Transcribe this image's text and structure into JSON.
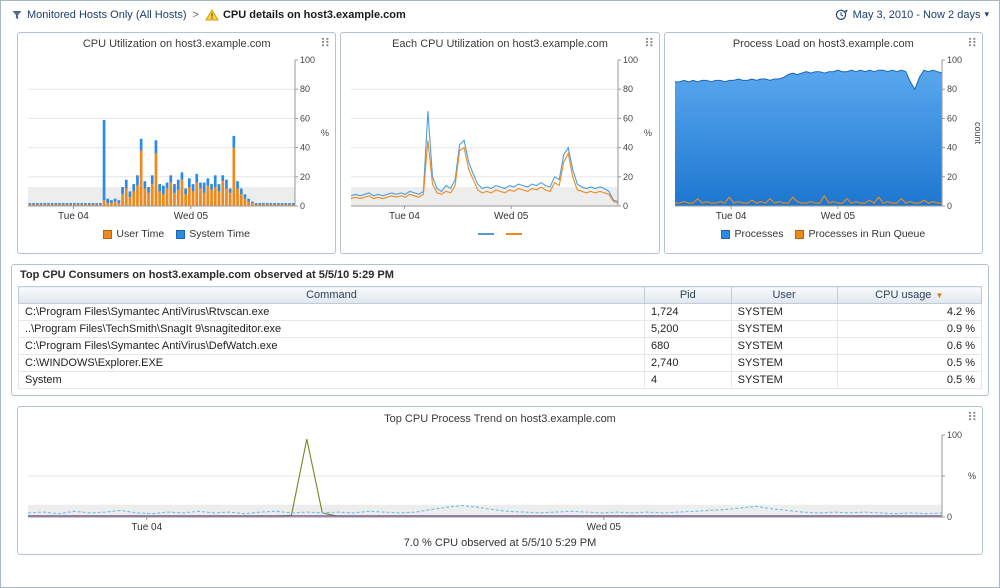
{
  "header": {
    "breadcrumb_root": "Monitored Hosts Only (All Hosts)",
    "breadcrumb_sep": ">",
    "page_title": "CPU details on host3.example.com",
    "time_range": "May 3, 2010 - Now 2 days"
  },
  "consumers": {
    "title": "Top CPU Consumers on host3.example.com observed at 5/5/10 5:29 PM",
    "columns": [
      "Command",
      "Pid",
      "User",
      "CPU usage"
    ],
    "rows": [
      {
        "command": "C:\\Program Files\\Symantec AntiVirus\\Rtvscan.exe",
        "pid": "1,724",
        "user": "SYSTEM",
        "cpu": "4.2 %"
      },
      {
        "command": "..\\Program Files\\TechSmith\\SnagIt 9\\snagiteditor.exe",
        "pid": "5,200",
        "user": "SYSTEM",
        "cpu": "0.9 %"
      },
      {
        "command": "C:\\Program Files\\Symantec AntiVirus\\DefWatch.exe",
        "pid": "680",
        "user": "SYSTEM",
        "cpu": "0.6 %"
      },
      {
        "command": "C:\\WINDOWS\\Explorer.EXE",
        "pid": "2,740",
        "user": "SYSTEM",
        "cpu": "0.5 %"
      },
      {
        "command": "System",
        "pid": "4",
        "user": "SYSTEM",
        "cpu": "0.5 %"
      }
    ]
  },
  "trend_caption": "7.0 % CPU observed at 5/5/10 5:29 PM",
  "chart_data": [
    {
      "id": "cpu_util",
      "type": "stacked-bar",
      "title": "CPU Utilization on host3.example.com",
      "ylim": [
        0,
        100
      ],
      "yticks": [
        0,
        20,
        40,
        60,
        80,
        100
      ],
      "ylabel": "%",
      "band": 13,
      "xticks": [
        {
          "pos": 0.17,
          "label": "Tue 04"
        },
        {
          "pos": 0.61,
          "label": "Wed 05"
        }
      ],
      "series": [
        {
          "name": "User Time",
          "color": "#ee8a1c",
          "values": [
            1,
            1,
            1,
            1,
            1,
            1,
            1,
            1,
            1,
            1,
            1,
            1,
            1,
            1,
            1,
            1,
            1,
            1,
            1,
            1,
            4,
            2,
            2,
            3,
            2,
            8,
            12,
            6,
            10,
            14,
            38,
            12,
            9,
            15,
            36,
            10,
            8,
            12,
            16,
            9,
            11,
            18,
            8,
            13,
            10,
            16,
            12,
            9,
            14,
            11,
            13,
            10,
            17,
            12,
            9,
            40,
            12,
            8,
            5,
            3,
            2,
            1,
            1,
            1,
            1,
            1,
            1,
            1,
            1,
            1,
            1,
            1
          ]
        },
        {
          "name": "System Time",
          "color": "#2b8be6",
          "values": [
            1,
            1,
            1,
            1,
            1,
            1,
            1,
            1,
            1,
            1,
            1,
            1,
            1,
            1,
            1,
            1,
            1,
            1,
            1,
            1,
            55,
            3,
            2,
            2,
            2,
            5,
            6,
            4,
            5,
            7,
            8,
            5,
            4,
            6,
            9,
            5,
            6,
            4,
            5,
            6,
            7,
            5,
            4,
            6,
            5,
            6,
            4,
            7,
            5,
            4,
            8,
            5,
            4,
            6,
            3,
            8,
            5,
            4,
            3,
            2,
            1,
            1,
            1,
            1,
            1,
            1,
            1,
            1,
            1,
            1,
            1,
            1
          ]
        }
      ],
      "legend": [
        {
          "label": "User Time",
          "color": "#ee8a1c",
          "shape": "square"
        },
        {
          "label": "System Time",
          "color": "#2b8be6",
          "shape": "square"
        }
      ]
    },
    {
      "id": "each_cpu",
      "type": "line",
      "title": "Each CPU Utilization on host3.example.com",
      "ylim": [
        0,
        100
      ],
      "yticks": [
        0,
        20,
        40,
        60,
        80,
        100
      ],
      "ylabel": "%",
      "band": 13,
      "xticks": [
        {
          "pos": 0.2,
          "label": "Tue 04"
        },
        {
          "pos": 0.6,
          "label": "Wed 05"
        }
      ],
      "series": [
        {
          "color": "#4f9ddb",
          "values": [
            7,
            8,
            7,
            8,
            9,
            7,
            8,
            7,
            8,
            9,
            8,
            9,
            8,
            10,
            9,
            8,
            10,
            65,
            20,
            12,
            10,
            14,
            12,
            18,
            42,
            45,
            30,
            22,
            15,
            12,
            13,
            12,
            14,
            13,
            12,
            14,
            13,
            15,
            14,
            13,
            15,
            14,
            16,
            14,
            13,
            20,
            18,
            35,
            40,
            25,
            15,
            13,
            12,
            13,
            12,
            13,
            12,
            10,
            4,
            3
          ]
        },
        {
          "color": "#ee8a1c",
          "values": [
            5,
            6,
            5,
            6,
            7,
            5,
            6,
            5,
            6,
            7,
            6,
            7,
            6,
            8,
            7,
            6,
            8,
            45,
            15,
            9,
            8,
            10,
            9,
            14,
            38,
            40,
            25,
            18,
            11,
            9,
            10,
            9,
            11,
            10,
            9,
            11,
            10,
            12,
            11,
            10,
            12,
            11,
            13,
            11,
            10,
            16,
            14,
            30,
            36,
            20,
            11,
            10,
            9,
            10,
            9,
            10,
            9,
            8,
            3,
            2
          ]
        }
      ],
      "legend": [
        {
          "label": "",
          "color": "#4f9ddb",
          "shape": "line"
        },
        {
          "label": "",
          "color": "#ee8a1c",
          "shape": "line"
        }
      ]
    },
    {
      "id": "proc_load",
      "type": "area",
      "title": "Process Load on host3.example.com",
      "ylim": [
        0,
        100
      ],
      "yticks": [
        0,
        20,
        40,
        60,
        80,
        100
      ],
      "ylabel": "count",
      "ylabel_rotate": true,
      "xticks": [
        {
          "pos": 0.21,
          "label": "Tue 04"
        },
        {
          "pos": 0.61,
          "label": "Wed 05"
        }
      ],
      "series": [
        {
          "name": "Processes",
          "color": "#2b8be6",
          "kind": "area",
          "values": [
            85,
            85,
            86,
            85,
            86,
            85,
            86,
            86,
            85,
            86,
            86,
            85,
            86,
            86,
            87,
            86,
            86,
            87,
            86,
            87,
            87,
            86,
            87,
            87,
            88,
            90,
            91,
            90,
            91,
            92,
            91,
            92,
            92,
            91,
            92,
            92,
            93,
            92,
            92,
            93,
            92,
            93,
            92,
            93,
            92,
            93,
            93,
            92,
            93,
            92,
            93,
            92,
            85,
            80,
            88,
            93,
            92,
            93,
            92,
            91
          ]
        },
        {
          "name": "Processes in Run Queue",
          "color": "#ee8a1c",
          "values": [
            2,
            2,
            3,
            2,
            2,
            5,
            2,
            3,
            2,
            2,
            3,
            2,
            6,
            2,
            3,
            2,
            2,
            4,
            2,
            3,
            2,
            5,
            2,
            3,
            2,
            2,
            6,
            3,
            2,
            2,
            3,
            2,
            2,
            7,
            2,
            3,
            2,
            2,
            5,
            2,
            3,
            2,
            2,
            4,
            2,
            6,
            2,
            3,
            2,
            2,
            5,
            2,
            3,
            2,
            2,
            4,
            2,
            3,
            2,
            2
          ]
        }
      ],
      "legend": [
        {
          "label": "Processes",
          "color": "#2b8be6",
          "shape": "square"
        },
        {
          "label": "Processes in Run Queue",
          "color": "#ee8a1c",
          "shape": "square"
        }
      ]
    },
    {
      "id": "cpu_trend",
      "type": "line",
      "title": "Top CPU Process Trend on host3.example.com",
      "ylim": [
        0,
        100
      ],
      "yticks": [
        0,
        50,
        100
      ],
      "ylabels": [
        "0",
        "",
        "100"
      ],
      "ylabel": "%",
      "band": 15,
      "xticks": [
        {
          "pos": 0.13,
          "label": "Tue 04"
        },
        {
          "pos": 0.63,
          "label": "Wed 05"
        }
      ],
      "series": [
        {
          "color": "#7b831f",
          "values": [
            1,
            1,
            1,
            1,
            1,
            1,
            1,
            1,
            1,
            1,
            1,
            1,
            1,
            1,
            1,
            1,
            1,
            2,
            95,
            5,
            1,
            1,
            1,
            1,
            1,
            1,
            1,
            1,
            1,
            1,
            1,
            1,
            1,
            1,
            1,
            1,
            1,
            1,
            1,
            1,
            1,
            1,
            1,
            1,
            1,
            1,
            1,
            1,
            1,
            1,
            1,
            1,
            1,
            1,
            1,
            1,
            1,
            1,
            1,
            1
          ]
        },
        {
          "color": "#6cc0dc",
          "dash": true,
          "values": [
            5,
            6,
            4,
            7,
            5,
            6,
            8,
            5,
            4,
            6,
            5,
            7,
            5,
            6,
            4,
            6,
            7,
            5,
            6,
            5,
            6,
            5,
            7,
            6,
            5,
            6,
            9,
            12,
            14,
            12,
            9,
            7,
            6,
            5,
            6,
            7,
            6,
            5,
            6,
            5,
            6,
            5,
            6,
            7,
            8,
            9,
            11,
            13,
            10,
            8,
            6,
            5,
            6,
            5,
            6,
            5,
            4,
            5,
            4,
            5
          ]
        },
        {
          "color": "#7b57a8",
          "values": [
            1.5,
            1.5,
            1.5,
            1.5,
            1.5,
            1.5,
            1.5,
            1.5,
            1.5,
            1.5,
            1.5,
            1.5,
            1.5,
            1.5,
            1.5,
            1.5,
            1.5,
            1.5,
            1.5,
            1.5,
            1.5,
            1.5,
            1.5,
            1.5,
            1.5,
            1.5,
            1.5,
            1.5,
            1.5,
            1.5,
            1.5,
            1.5,
            1.5,
            1.5,
            1.5,
            1.5,
            1.5,
            1.5,
            1.5,
            1.5,
            1.5,
            1.5,
            1.5,
            1.5,
            1.5,
            1.5,
            1.5,
            1.5,
            1.5,
            1.5,
            1.5,
            1.5,
            1.5,
            1.5,
            1.5,
            1.5,
            1.5,
            1.5,
            1.5,
            1.5
          ]
        }
      ],
      "legend": []
    }
  ]
}
